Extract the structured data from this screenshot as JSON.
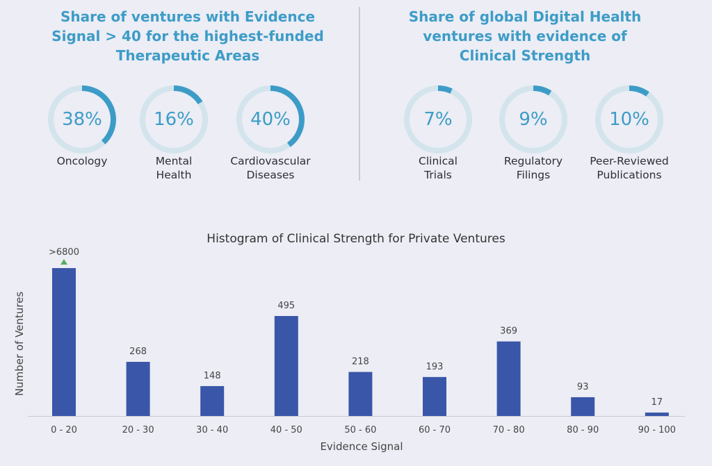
{
  "left_panel": {
    "title": "Share of ventures with Evidence\nSignal > 40 for the highest-funded\nTherapeutic Areas",
    "donuts": [
      {
        "value": "38%",
        "fraction": 0.38,
        "label": "Oncology"
      },
      {
        "value": "16%",
        "fraction": 0.16,
        "label": "Mental\nHealth"
      },
      {
        "value": "40%",
        "fraction": 0.4,
        "label": "Cardiovascular\nDiseases"
      }
    ]
  },
  "right_panel": {
    "title": "Share of global Digital Health\nventures with evidence of\nClinical Strength",
    "donuts": [
      {
        "value": "7%",
        "fraction": 0.07,
        "label": "Clinical\nTrials"
      },
      {
        "value": "9%",
        "fraction": 0.09,
        "label": "Regulatory\nFilings"
      },
      {
        "value": "10%",
        "fraction": 0.1,
        "label": "Peer-Reviewed\nPublications"
      }
    ]
  },
  "colors": {
    "accent": "#3d9cc7",
    "ring_track": "#d3e4ed",
    "bar": "#3a56a8",
    "marker": "#5aaa63"
  },
  "chart_data": {
    "type": "bar",
    "title": "Histogram of Clinical Strength for Private Ventures",
    "xlabel": "Evidence Signal",
    "ylabel": "Number of Ventures",
    "categories": [
      "0 - 20",
      "20 - 30",
      "30 - 40",
      "40 - 50",
      "50 - 60",
      "60 - 70",
      "70 - 80",
      "80 - 90",
      "90 - 100"
    ],
    "values": [
      6800,
      268,
      148,
      495,
      218,
      193,
      369,
      93,
      17
    ],
    "data_labels": [
      ">6800",
      "268",
      "148",
      "495",
      "218",
      "193",
      "369",
      "93",
      "17"
    ],
    "truncated_first_bar": true,
    "grid": false
  }
}
